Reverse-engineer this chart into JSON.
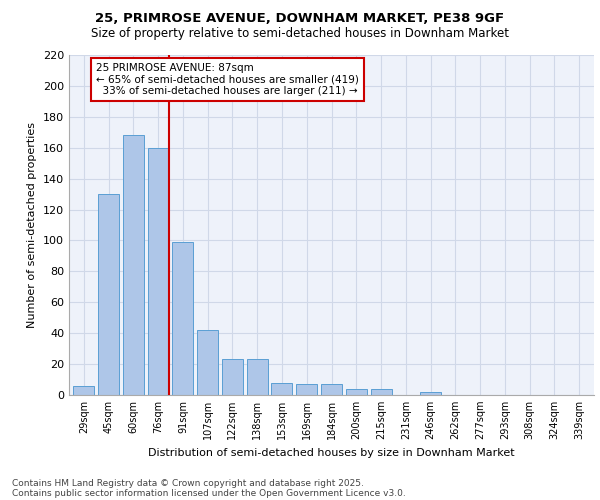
{
  "title1": "25, PRIMROSE AVENUE, DOWNHAM MARKET, PE38 9GF",
  "title2": "Size of property relative to semi-detached houses in Downham Market",
  "xlabel": "Distribution of semi-detached houses by size in Downham Market",
  "ylabel": "Number of semi-detached properties",
  "categories": [
    "29sqm",
    "45sqm",
    "60sqm",
    "76sqm",
    "91sqm",
    "107sqm",
    "122sqm",
    "138sqm",
    "153sqm",
    "169sqm",
    "184sqm",
    "200sqm",
    "215sqm",
    "231sqm",
    "246sqm",
    "262sqm",
    "277sqm",
    "293sqm",
    "308sqm",
    "324sqm",
    "339sqm"
  ],
  "values": [
    6,
    130,
    168,
    160,
    99,
    42,
    23,
    23,
    8,
    7,
    7,
    4,
    4,
    0,
    2,
    0,
    0,
    0,
    0,
    0,
    0
  ],
  "bar_color": "#aec6e8",
  "bar_edge_color": "#5a9fd4",
  "grid_color": "#d0d8e8",
  "background_color": "#eef2fa",
  "annotation_line1": "25 PRIMROSE AVENUE: 87sqm",
  "annotation_line2": "← 65% of semi-detached houses are smaller (419)",
  "annotation_line3": "  33% of semi-detached houses are larger (211) →",
  "annotation_box_color": "#ffffff",
  "annotation_box_edge": "#cc0000",
  "ref_line_color": "#cc0000",
  "footnote1": "Contains HM Land Registry data © Crown copyright and database right 2025.",
  "footnote2": "Contains public sector information licensed under the Open Government Licence v3.0.",
  "ylim": [
    0,
    220
  ],
  "yticks": [
    0,
    20,
    40,
    60,
    80,
    100,
    120,
    140,
    160,
    180,
    200,
    220
  ],
  "title1_fontsize": 9.5,
  "title2_fontsize": 8.5,
  "tick_fontsize": 7,
  "ylabel_fontsize": 8,
  "xlabel_fontsize": 8,
  "footnote_fontsize": 6.5,
  "annot_fontsize": 7.5
}
